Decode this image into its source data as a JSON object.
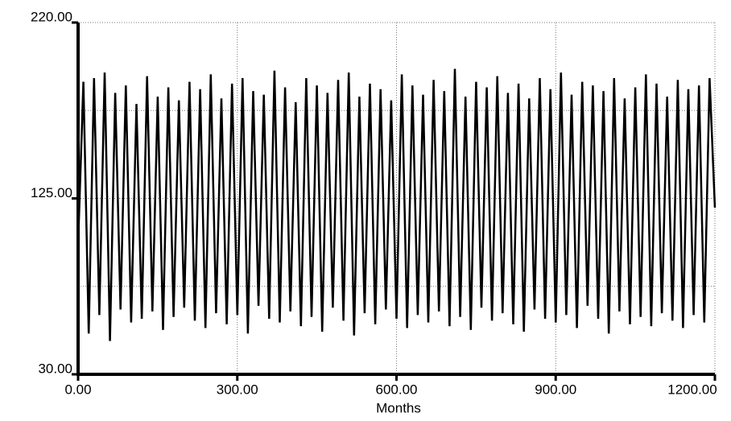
{
  "chart_data": {
    "type": "line",
    "xlabel": "Months",
    "x": [
      0,
      10,
      20,
      30,
      40,
      50,
      60,
      70,
      80,
      90,
      100,
      110,
      120,
      130,
      140,
      150,
      160,
      170,
      180,
      190,
      200,
      210,
      220,
      230,
      240,
      250,
      260,
      270,
      280,
      290,
      300,
      310,
      320,
      330,
      340,
      350,
      360,
      370,
      380,
      390,
      400,
      410,
      420,
      430,
      440,
      450,
      460,
      470,
      480,
      490,
      500,
      510,
      520,
      530,
      540,
      550,
      560,
      570,
      580,
      590,
      600,
      610,
      620,
      630,
      640,
      650,
      660,
      670,
      680,
      690,
      700,
      710,
      720,
      730,
      740,
      750,
      760,
      770,
      780,
      790,
      800,
      810,
      820,
      830,
      840,
      850,
      860,
      870,
      880,
      890,
      900,
      910,
      920,
      930,
      940,
      950,
      960,
      970,
      980,
      990,
      1000,
      1010,
      1020,
      1030,
      1040,
      1050,
      1060,
      1070,
      1080,
      1090,
      1100,
      1110,
      1120,
      1130,
      1140,
      1150,
      1160,
      1170,
      1180,
      1190,
      1200
    ],
    "series": [
      {
        "color": "#000000",
        "values": [
          100,
          188,
          52,
          190,
          62,
          193,
          48,
          182,
          65,
          186,
          58,
          176,
          60,
          191,
          64,
          180,
          54,
          185,
          61,
          178,
          66,
          188,
          59,
          184,
          55,
          192,
          63,
          179,
          57,
          187,
          62,
          190,
          52,
          183,
          67,
          181,
          60,
          194,
          58,
          185,
          64,
          177,
          56,
          190,
          61,
          186,
          53,
          182,
          66,
          189,
          59,
          193,
          51,
          180,
          63,
          187,
          57,
          184,
          65,
          178,
          60,
          192,
          55,
          186,
          62,
          181,
          58,
          189,
          64,
          183,
          56,
          195,
          61,
          180,
          54,
          188,
          66,
          185,
          59,
          191,
          63,
          182,
          57,
          187,
          53,
          179,
          65,
          190,
          60,
          184,
          58,
          193,
          62,
          181,
          55,
          188,
          67,
          186,
          60,
          183,
          52,
          190,
          64,
          179,
          57,
          185,
          61,
          192,
          56,
          187,
          63,
          180,
          59,
          189,
          55,
          184,
          62,
          186,
          58,
          190,
          120
        ]
      }
    ],
    "xlim": [
      0,
      1200
    ],
    "ylim": [
      30,
      220
    ],
    "xticks": [
      {
        "value": 0,
        "label": "0.00"
      },
      {
        "value": 300,
        "label": "300.00"
      },
      {
        "value": 600,
        "label": "600.00"
      },
      {
        "value": 900,
        "label": "900.00"
      },
      {
        "value": 1200,
        "label": "1200.00"
      }
    ],
    "yticks": [
      {
        "value": 30,
        "label": "30.00"
      },
      {
        "value": 125,
        "label": "125.00"
      },
      {
        "value": 220,
        "label": "220.00"
      }
    ],
    "ygrid": [
      77.5,
      125,
      172.5,
      220
    ],
    "xgrid": [
      300,
      600,
      900,
      1200
    ]
  }
}
